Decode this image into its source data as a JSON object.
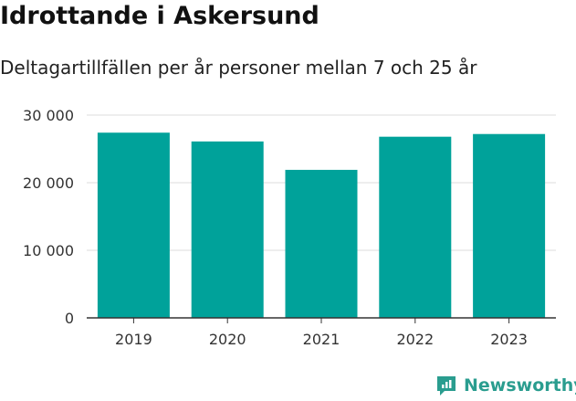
{
  "header": {
    "title": "Idrottande i Askersund",
    "subtitle": "Deltagartillfällen per år personer mellan 7 och 25 år"
  },
  "brand": {
    "name": "Newsworthy",
    "color": "#2a9d8f"
  },
  "chart_data": {
    "type": "bar",
    "title": "Idrottande i Askersund",
    "subtitle": "Deltagartillfällen per år personer mellan 7 och 25 år",
    "categories": [
      "2019",
      "2020",
      "2021",
      "2022",
      "2023"
    ],
    "series": [
      {
        "values": [
          27400,
          26100,
          21900,
          26800,
          27200
        ]
      }
    ],
    "ylim": [
      0,
      30000
    ],
    "yticks": [
      0,
      10000,
      20000,
      30000
    ],
    "ytick_labels": [
      "0",
      "10 000",
      "20 000",
      "30 000"
    ],
    "xlabel": "",
    "ylabel": "",
    "grid": true,
    "legend": "none",
    "bar_color": "#00a29a",
    "grid_color": "#dddddd",
    "axis_color": "#333333"
  }
}
